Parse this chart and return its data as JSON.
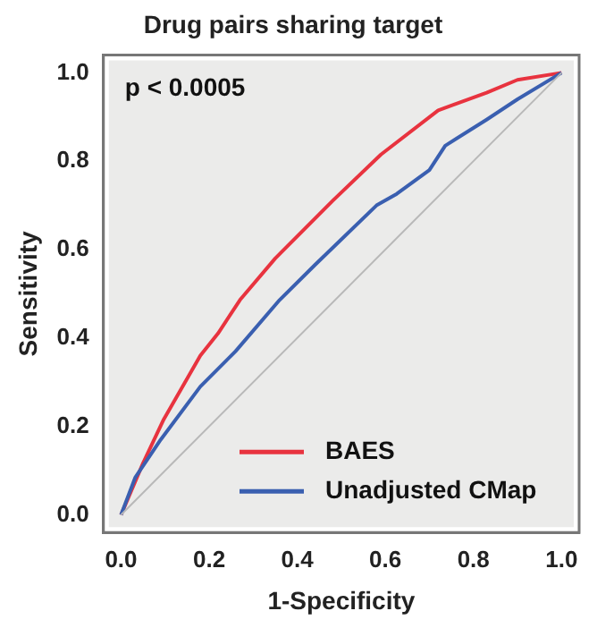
{
  "chart_data": {
    "type": "line",
    "title": "Drug pairs sharing target",
    "xlabel": "1-Specificity",
    "ylabel": "Sensitivity",
    "xlim": [
      -0.04,
      1.04
    ],
    "ylim": [
      -0.04,
      1.04
    ],
    "xticks": [
      {
        "value": 0,
        "label": "0.0"
      },
      {
        "value": 0.2,
        "label": "0.2"
      },
      {
        "value": 0.4,
        "label": "0.4"
      },
      {
        "value": 0.6,
        "label": "0.6"
      },
      {
        "value": 0.8,
        "label": "0.8"
      },
      {
        "value": 1,
        "label": "1.0"
      }
    ],
    "yticks": [
      {
        "value": 0,
        "label": "0.0"
      },
      {
        "value": 0.2,
        "label": "0.2"
      },
      {
        "value": 0.4,
        "label": "0.4"
      },
      {
        "value": 0.6,
        "label": "0.6"
      },
      {
        "value": 0.8,
        "label": "0.8"
      },
      {
        "value": 1,
        "label": "1.0"
      }
    ],
    "series": [
      {
        "name": "BAES",
        "color": "#e8333f",
        "x": [
          0,
          0.05,
          0.097,
          0.18,
          0.22,
          0.27,
          0.35,
          0.48,
          0.59,
          0.72,
          0.83,
          0.9,
          1
        ],
        "values": [
          0,
          0.117,
          0.216,
          0.36,
          0.41,
          0.486,
          0.58,
          0.71,
          0.815,
          0.915,
          0.955,
          0.984,
          1
        ]
      },
      {
        "name": "Unadjusted CMap",
        "color": "#3a5fb0",
        "x": [
          0,
          0.032,
          0.09,
          0.18,
          0.26,
          0.36,
          0.44,
          0.58,
          0.626,
          0.7,
          0.736,
          0.83,
          0.9,
          1
        ],
        "values": [
          0,
          0.084,
          0.17,
          0.29,
          0.37,
          0.486,
          0.565,
          0.7,
          0.726,
          0.78,
          0.835,
          0.894,
          0.94,
          1
        ]
      },
      {
        "color": "#b8b8b8",
        "x": [
          0,
          1
        ],
        "values": [
          0,
          1
        ]
      }
    ],
    "annotations": [
      "p < 0.0005"
    ],
    "legend": "bottom right",
    "grid": false,
    "marker": "none",
    "line_style": "solid"
  }
}
